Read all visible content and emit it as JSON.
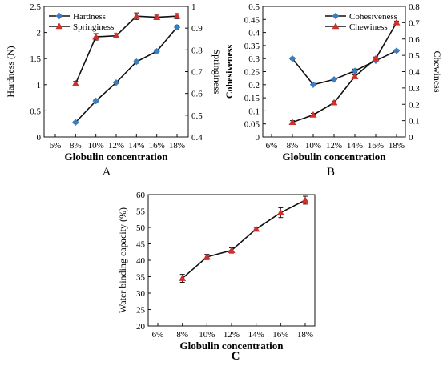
{
  "colors": {
    "blue_series": "#3a7fc4",
    "red_series": "#d0302d",
    "line": "#111111"
  },
  "chart_data": [
    {
      "panel": "A",
      "type": "line",
      "categories": [
        "6%",
        "8%",
        "10%",
        "12%",
        "14%",
        "16%",
        "18%"
      ],
      "xlabel": "Globulin concentration",
      "ylabel_left": "Hardness (N)",
      "ylabel_right": "Springiness",
      "ylim_left": [
        0,
        2.5
      ],
      "yticks_left": [
        "0",
        "0.5",
        "1",
        "1.5",
        "2",
        "2.5"
      ],
      "ylim_right": [
        0.4,
        1.0
      ],
      "yticks_right": [
        "0.4",
        "0.5",
        "0.6",
        "0.7",
        "0.8",
        "0.9",
        "1"
      ],
      "legend_position": "top-left",
      "series": [
        {
          "name": "Hardness",
          "axis": "left",
          "color": "#3a7fc4",
          "marker": "diamond",
          "values": [
            null,
            0.28,
            0.69,
            1.04,
            1.44,
            1.64,
            2.1
          ],
          "errors": [
            null,
            0.02,
            0.03,
            0.02,
            0.03,
            0.03,
            0.04
          ]
        },
        {
          "name": "Springiness",
          "axis": "right",
          "color": "#d0302d",
          "marker": "triangle",
          "values": [
            null,
            0.645,
            0.86,
            0.865,
            0.955,
            0.95,
            0.955
          ],
          "errors": [
            null,
            0.01,
            0.015,
            0.01,
            0.015,
            0.01,
            0.012
          ]
        }
      ]
    },
    {
      "panel": "B",
      "type": "line",
      "categories": [
        "6%",
        "8%",
        "10%",
        "12%",
        "14%",
        "16%",
        "18%"
      ],
      "xlabel": "Globulin concentration",
      "ylabel_left": "Cohesiveness",
      "ylabel_right": "Chewiness",
      "ylim_left": [
        0,
        0.5
      ],
      "yticks_left": [
        "0",
        "0.05",
        "0.1",
        "0.15",
        "0.2",
        "0.25",
        "0.3",
        "0.35",
        "0.4",
        "0.45",
        "0.5"
      ],
      "ylim_right": [
        0,
        0.8
      ],
      "yticks_right": [
        "0",
        "0.1",
        "0.2",
        "0.3",
        "0.4",
        "0.5",
        "0.6",
        "0.7",
        "0.8"
      ],
      "legend_position": "top-right",
      "series": [
        {
          "name": "Cohesiveness",
          "axis": "left",
          "color": "#3a7fc4",
          "marker": "diamond",
          "values": [
            null,
            0.3,
            0.2,
            0.22,
            0.253,
            0.292,
            0.33
          ],
          "errors": [
            null,
            0.004,
            0.005,
            0.005,
            0.007,
            0.005,
            0.004
          ]
        },
        {
          "name": "Chewiness",
          "axis": "right",
          "color": "#d0302d",
          "marker": "triangle",
          "values": [
            null,
            0.09,
            0.135,
            0.21,
            0.37,
            0.48,
            0.7
          ],
          "errors": [
            null,
            0.01,
            0.01,
            0.01,
            0.01,
            0.01,
            0.01
          ]
        }
      ]
    },
    {
      "panel": "C",
      "type": "line",
      "categories": [
        "6%",
        "8%",
        "10%",
        "12%",
        "14%",
        "16%",
        "18%"
      ],
      "xlabel": "Globulin concentration",
      "ylabel_left": "Water binding capacity (%)",
      "ylim_left": [
        20,
        60
      ],
      "yticks_left": [
        "20",
        "25",
        "30",
        "35",
        "40",
        "45",
        "50",
        "55",
        "60"
      ],
      "series": [
        {
          "axis": "left",
          "color": "#d0302d",
          "marker": "triangle",
          "values": [
            null,
            34.5,
            41,
            43,
            49.5,
            54.5,
            58.3
          ],
          "errors": [
            null,
            1.2,
            0.8,
            0.8,
            0.5,
            1.5,
            1.2
          ]
        }
      ]
    }
  ]
}
